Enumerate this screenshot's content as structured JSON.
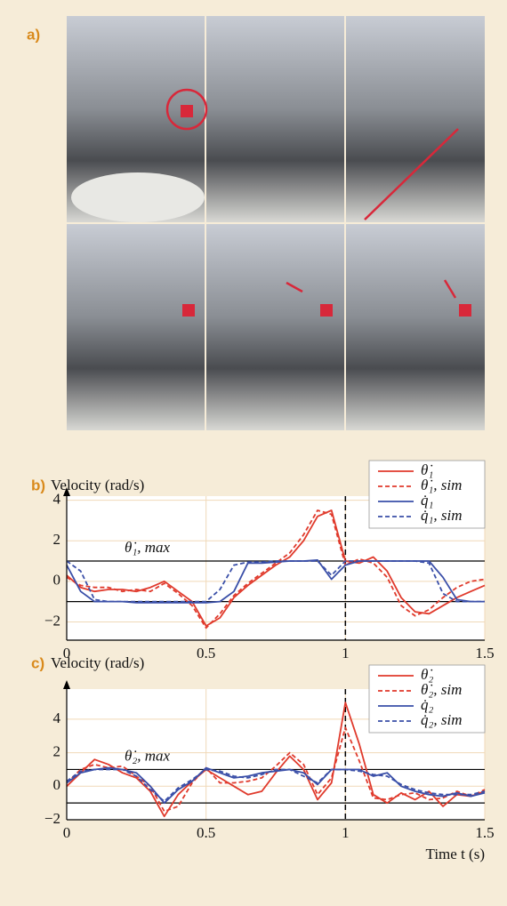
{
  "panel_a": {
    "label": "a)"
  },
  "chart_data": [
    {
      "type": "line",
      "panel_label": "b)",
      "title": "Velocity (rad/s)",
      "x_label": "Time t (s)",
      "annotation": "θ̇₁, max",
      "xlim": [
        0,
        1.5
      ],
      "ylim": [
        -2.9,
        4.2
      ],
      "xticks": [
        0,
        0.5,
        1,
        1.5
      ],
      "yticks": [
        {
          "value": -2,
          "label": "−2"
        },
        0,
        2,
        4
      ],
      "grid": true,
      "hlines": [
        1,
        -1
      ],
      "vline": 1,
      "legend": "upper right",
      "x": [
        0,
        0.05,
        0.1,
        0.15,
        0.2,
        0.25,
        0.3,
        0.35,
        0.4,
        0.45,
        0.5,
        0.55,
        0.6,
        0.65,
        0.7,
        0.75,
        0.8,
        0.85,
        0.9,
        0.95,
        1,
        1.05,
        1.1,
        1.15,
        1.2,
        1.25,
        1.3,
        1.35,
        1.4,
        1.45,
        1.5
      ],
      "series": [
        {
          "name": "θ̇₁",
          "color": "#e03a2c",
          "dash": false,
          "values": [
            0.3,
            -0.3,
            -0.5,
            -0.4,
            -0.4,
            -0.5,
            -0.3,
            0,
            -0.5,
            -1.0,
            -2.2,
            -1.8,
            -0.8,
            -0.2,
            0.3,
            0.8,
            1.2,
            2.0,
            3.2,
            3.5,
            1.0,
            0.9,
            1.2,
            0.5,
            -0.8,
            -1.5,
            -1.6,
            -1.2,
            -0.8,
            -0.5,
            -0.2
          ]
        },
        {
          "name": "θ̇₁, sim",
          "color": "#e03a2c",
          "dash": true,
          "values": [
            0.2,
            -0.2,
            -0.3,
            -0.3,
            -0.5,
            -0.4,
            -0.5,
            -0.1,
            -0.6,
            -1.2,
            -2.3,
            -1.6,
            -0.7,
            -0.1,
            0.4,
            0.9,
            1.4,
            2.3,
            3.5,
            3.3,
            0.8,
            1.1,
            0.9,
            0.2,
            -1.2,
            -1.7,
            -1.4,
            -0.8,
            -0.3,
            0,
            0.1
          ]
        },
        {
          "name": "q̇₁",
          "color": "#3a4fa8",
          "dash": false,
          "values": [
            0.8,
            -0.5,
            -1.0,
            -1.0,
            -1.0,
            -1.05,
            -1.05,
            -1.05,
            -1.05,
            -1.05,
            -1.05,
            -1.0,
            -0.5,
            0.9,
            0.9,
            0.95,
            1.0,
            1.0,
            1.05,
            0.1,
            0.8,
            1.0,
            1.0,
            1.0,
            1.0,
            1.0,
            1.0,
            0.2,
            -0.9,
            -1.0,
            -1.0
          ]
        },
        {
          "name": "q̇₁, sim",
          "color": "#3a4fa8",
          "dash": true,
          "values": [
            1.0,
            0.5,
            -0.9,
            -1.0,
            -1.0,
            -1.0,
            -1.0,
            -1.0,
            -1.0,
            -1.0,
            -1.0,
            -0.4,
            0.8,
            0.95,
            0.95,
            1.0,
            1.0,
            1.0,
            1.0,
            0.3,
            1.0,
            1.0,
            1.0,
            1.0,
            1.0,
            1.0,
            0.9,
            -0.6,
            -1.0,
            -1.0,
            -1.0
          ]
        }
      ]
    },
    {
      "type": "line",
      "panel_label": "c)",
      "title": "Velocity (rad/s)",
      "x_label": "Time t (s)",
      "annotation": "θ̇₂, max",
      "xlim": [
        0,
        1.5
      ],
      "ylim": [
        -2,
        5.8
      ],
      "xticks": [
        0,
        0.5,
        1,
        1.5
      ],
      "yticks": [
        {
          "value": -2,
          "label": "−2"
        },
        0,
        2,
        4
      ],
      "grid": true,
      "hlines": [
        1,
        -1
      ],
      "vline": 1,
      "legend": "upper right",
      "x": [
        0,
        0.05,
        0.1,
        0.15,
        0.2,
        0.25,
        0.3,
        0.35,
        0.4,
        0.45,
        0.5,
        0.55,
        0.6,
        0.65,
        0.7,
        0.75,
        0.8,
        0.85,
        0.9,
        0.95,
        1,
        1.05,
        1.1,
        1.15,
        1.2,
        1.25,
        1.3,
        1.35,
        1.4,
        1.45,
        1.5
      ],
      "series": [
        {
          "name": "θ̇₂",
          "color": "#e03a2c",
          "dash": false,
          "values": [
            0,
            0.8,
            1.6,
            1.3,
            0.8,
            0.5,
            -0.3,
            -1.8,
            -0.5,
            0.3,
            1.0,
            0.5,
            0,
            -0.5,
            -0.3,
            0.8,
            1.8,
            1.0,
            -0.8,
            0.2,
            5.0,
            2.5,
            -0.5,
            -1.0,
            -0.4,
            -0.8,
            -0.3,
            -1.2,
            -0.5,
            -0.6,
            -0.3
          ]
        },
        {
          "name": "θ̇₂, sim",
          "color": "#e03a2c",
          "dash": true,
          "values": [
            0.2,
            1.0,
            1.3,
            1.1,
            1.2,
            0.6,
            0,
            -1.5,
            -1.2,
            0.2,
            1.1,
            0.2,
            0.2,
            0.3,
            0.5,
            1.2,
            2.0,
            1.3,
            -0.5,
            0.5,
            3.5,
            1.5,
            -0.7,
            -0.8,
            -0.5,
            -0.4,
            -0.8,
            -0.7,
            -0.3,
            -0.6,
            -0.2
          ]
        },
        {
          "name": "q̇₂",
          "color": "#3a4fa8",
          "dash": false,
          "values": [
            0.2,
            0.8,
            1.0,
            1.1,
            1.0,
            0.8,
            0,
            -1.0,
            -0.2,
            0.3,
            1.1,
            0.8,
            0.5,
            0.6,
            0.8,
            0.9,
            1.0,
            0.8,
            0.1,
            1.0,
            1.0,
            1.0,
            0.6,
            0.8,
            0,
            -0.3,
            -0.5,
            -0.6,
            -0.4,
            -0.6,
            -0.4
          ]
        },
        {
          "name": "q̇₂, sim",
          "color": "#3a4fa8",
          "dash": true,
          "values": [
            0.3,
            0.9,
            1.0,
            1.0,
            1.0,
            0.6,
            -0.2,
            -0.9,
            -0.1,
            0.4,
            1.0,
            0.9,
            0.6,
            0.5,
            0.7,
            1.0,
            1.0,
            0.6,
            0.2,
            1.0,
            1.0,
            0.9,
            0.7,
            0.6,
            0.1,
            -0.2,
            -0.4,
            -0.5,
            -0.5,
            -0.5,
            -0.3
          ]
        }
      ]
    }
  ]
}
